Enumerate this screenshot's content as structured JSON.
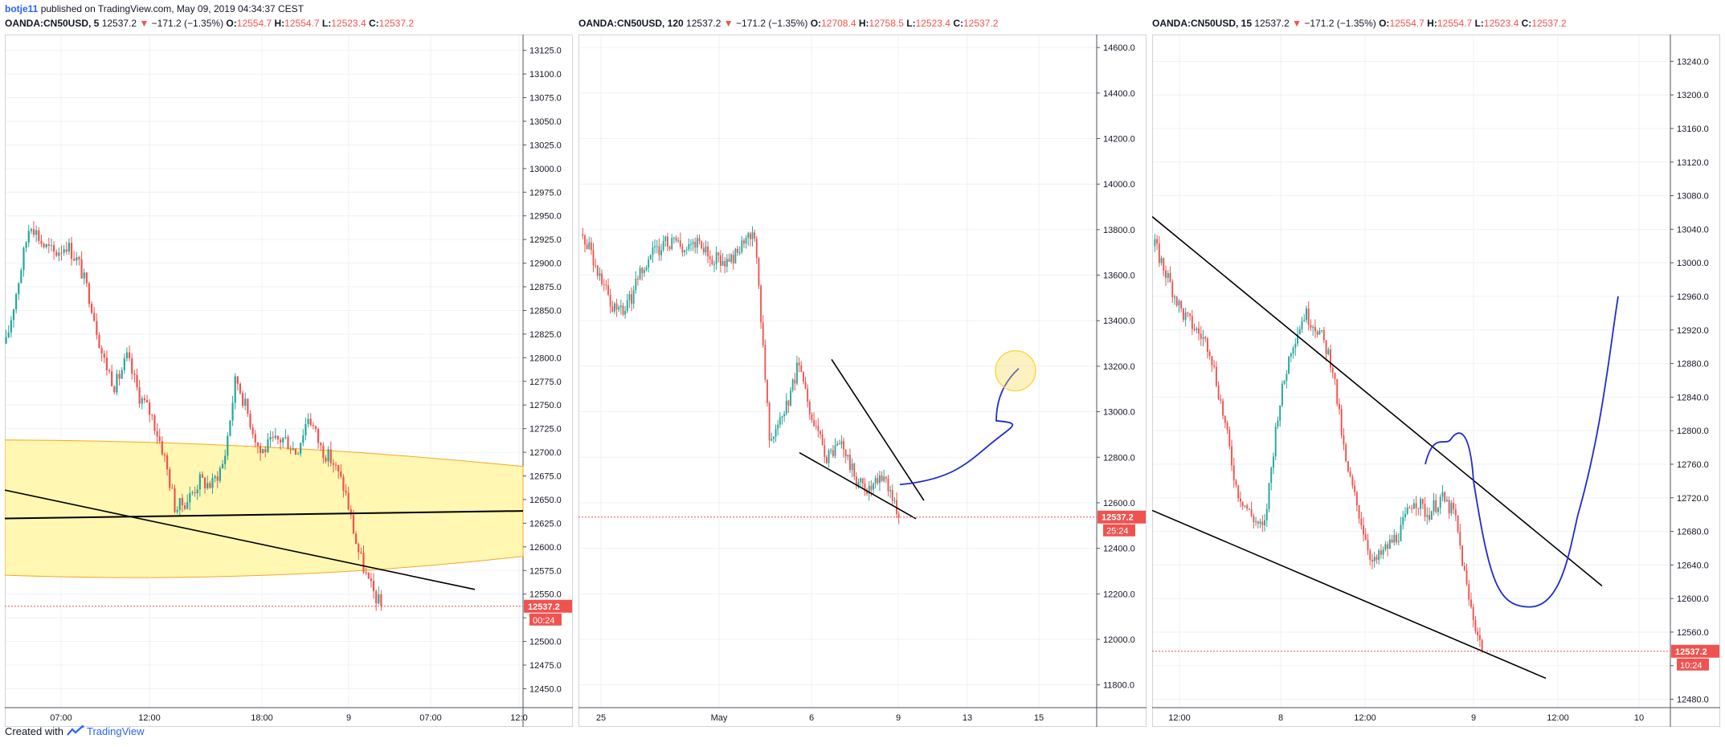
{
  "published": {
    "user": "botje11",
    "text": "published on TradingView.com, May 09, 2019 04:34:37 CEST"
  },
  "footer": {
    "created_with": "Created with",
    "brand": "TradingView"
  },
  "colors": {
    "up": "#26a69a",
    "down": "#ef5350",
    "price_line": "#ef5350",
    "zone_fill": "#fff7b2",
    "zone_stroke": "#f5a623",
    "drawing_blue": "#1e2ccf",
    "trendline": "#000000",
    "grid": "#eef1f6",
    "highlight_circle": "#f7d94c"
  },
  "panels": [
    {
      "id": "p1",
      "header": {
        "symbol": "OANDA:CN50USD, 5",
        "last": "12537.2",
        "arrow": "▼",
        "change": "−171.2 (−1.35%)",
        "o_label": "O:",
        "o": "12554.7",
        "h_label": "H:",
        "h": "12554.7",
        "l_label": "L:",
        "l": "12523.4",
        "c_label": "C:",
        "c": "12537.2"
      },
      "price_tag": "12537.2",
      "timer": "00:24",
      "y_ticks": [
        "13125.0",
        "13100.0",
        "13075.0",
        "13050.0",
        "13025.0",
        "13000.0",
        "12975.0",
        "12950.0",
        "12925.0",
        "12900.0",
        "12875.0",
        "12850.0",
        "12825.0",
        "12800.0",
        "12775.0",
        "12750.0",
        "12725.0",
        "12700.0",
        "12675.0",
        "12650.0",
        "12625.0",
        "12600.0",
        "12575.0",
        "12550.0",
        "12525.0",
        "12500.0",
        "12475.0",
        "12450.0"
      ],
      "x_ticks": [
        "07:00",
        "12:00",
        "18:00",
        "9",
        "07:00",
        "12:0"
      ]
    },
    {
      "id": "p2",
      "header": {
        "symbol": "OANDA:CN50USD, 120",
        "last": "12537.2",
        "arrow": "▼",
        "change": "−171.2 (−1.35%)",
        "o_label": "O:",
        "o": "12708.4",
        "h_label": "H:",
        "h": "12758.5",
        "l_label": "L:",
        "l": "12523.4",
        "c_label": "C:",
        "c": "12537.2"
      },
      "price_tag": "12537.2",
      "timer": "25:24",
      "y_ticks": [
        "14600.0",
        "14400.0",
        "14200.0",
        "14000.0",
        "13800.0",
        "13600.0",
        "13400.0",
        "13200.0",
        "13000.0",
        "12800.0",
        "12600.0",
        "12400.0",
        "12200.0",
        "12000.0",
        "11800.0"
      ],
      "x_ticks": [
        "25",
        "May",
        "6",
        "9",
        "13",
        "15"
      ]
    },
    {
      "id": "p3",
      "header": {
        "symbol": "OANDA:CN50USD, 15",
        "last": "12537.2",
        "arrow": "▼",
        "change": "−171.2 (−1.35%)",
        "o_label": "O:",
        "o": "12554.7",
        "h_label": "H:",
        "h": "12554.7",
        "l_label": "L:",
        "l": "12523.4",
        "c_label": "C:",
        "c": "12537.2"
      },
      "price_tag": "12537.2",
      "timer": "10:24",
      "y_ticks": [
        "13240.0",
        "13200.0",
        "13160.0",
        "13120.0",
        "13080.0",
        "13040.0",
        "13000.0",
        "12960.0",
        "12920.0",
        "12880.0",
        "12840.0",
        "12800.0",
        "12760.0",
        "12720.0",
        "12680.0",
        "12640.0",
        "12600.0",
        "12560.0",
        "12520.0",
        "12480.0"
      ],
      "x_ticks": [
        "12:00",
        "8",
        "12:00",
        "9",
        "12:00",
        "10"
      ]
    }
  ],
  "chart_data": [
    {
      "type": "candlestick",
      "title": "OANDA:CN50USD, 5",
      "ylim": [
        12430,
        13140
      ],
      "x_tick_labels": [
        "07:00",
        "12:00",
        "18:00",
        "9",
        "07:00",
        "12:0"
      ],
      "close_path": [
        12815,
        12880,
        12945,
        12920,
        12910,
        12920,
        12900,
        12860,
        12800,
        12770,
        12800,
        12760,
        12740,
        12700,
        12640,
        12650,
        12670,
        12665,
        12690,
        12780,
        12740,
        12700,
        12710,
        12715,
        12700,
        12740,
        12705,
        12690,
        12660,
        12600,
        12560,
        12537.2
      ],
      "last_price": 12537.2,
      "annotations": [
        "yellow zone ~12570–12710",
        "horizontal trendline ~12630",
        "descending trendline"
      ]
    },
    {
      "type": "candlestick",
      "title": "OANDA:CN50USD, 120",
      "ylim": [
        11700,
        14650
      ],
      "x_tick_labels": [
        "25",
        "May",
        "6",
        "9",
        "13",
        "15"
      ],
      "close_path": [
        13780,
        13620,
        13470,
        13450,
        13600,
        13700,
        13750,
        13720,
        13740,
        13680,
        13650,
        13720,
        13780,
        12900,
        12980,
        13200,
        12950,
        12800,
        12860,
        12700,
        12650,
        12720,
        12537.2
      ],
      "last_price": 12537.2,
      "annotations": [
        "falling wedge",
        "blue projected path upward",
        "yellow target circle ~13200"
      ]
    },
    {
      "type": "candlestick",
      "title": "OANDA:CN50USD, 15",
      "ylim": [
        12470,
        13270
      ],
      "x_tick_labels": [
        "12:00",
        "8",
        "12:00",
        "9",
        "12:00",
        "10"
      ],
      "close_path": [
        13020,
        12980,
        12940,
        12920,
        12900,
        12820,
        12730,
        12700,
        12680,
        12820,
        12900,
        12940,
        12920,
        12880,
        12760,
        12700,
        12640,
        12660,
        12680,
        12720,
        12700,
        12720,
        12700,
        12600,
        12537.2
      ],
      "last_price": 12537.2,
      "annotations": [
        "descending channel",
        "blue projected path dip then rally"
      ]
    }
  ]
}
